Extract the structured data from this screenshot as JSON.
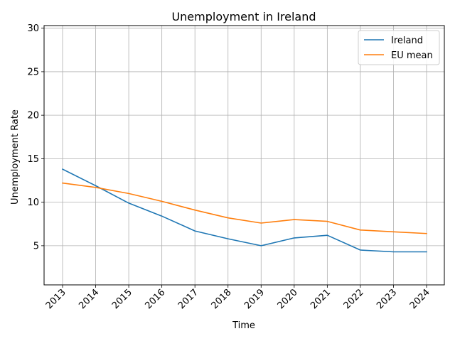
{
  "chart_data": {
    "type": "line",
    "title": "Unemployment in Ireland",
    "xlabel": "Time",
    "ylabel": "Unemployment Rate",
    "x": [
      "2013",
      "2014",
      "2015",
      "2016",
      "2017",
      "2018",
      "2019",
      "2020",
      "2021",
      "2022",
      "2023",
      "2024"
    ],
    "ylim": [
      0.5,
      30.3
    ],
    "yticks": [
      5,
      10,
      15,
      20,
      25,
      30
    ],
    "grid": true,
    "legend_position": "top-right",
    "series": [
      {
        "name": "Ireland",
        "color": "#1f77b4",
        "values": [
          13.8,
          11.9,
          9.9,
          8.4,
          6.7,
          5.8,
          5.0,
          5.9,
          6.2,
          4.5,
          4.3,
          4.3
        ]
      },
      {
        "name": "EU mean",
        "color": "#ff7f0e",
        "values": [
          12.2,
          11.7,
          11.0,
          10.1,
          9.1,
          8.2,
          7.6,
          8.0,
          7.8,
          6.8,
          6.6,
          6.4
        ]
      }
    ]
  }
}
